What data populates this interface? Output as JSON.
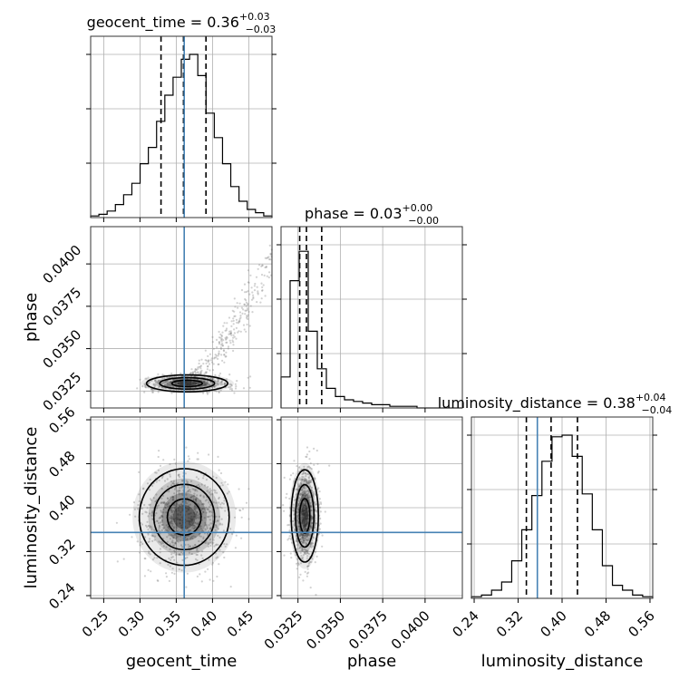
{
  "colors": {
    "truth": "#4682b4",
    "hist": "#000000",
    "quantile": "#000000",
    "scatter": "#7f7f7f"
  },
  "chart_data": {
    "type": "corner",
    "parameters": [
      {
        "name": "geocent_time",
        "label": "geocent_time",
        "title": {
          "prefix": "geocent_time = ",
          "median": "0.36",
          "plus": "+0.03",
          "minus": "−0.03"
        },
        "range": [
          0.232,
          0.482
        ],
        "ticks": [
          0.25,
          0.3,
          0.35,
          0.4,
          0.45
        ],
        "tick_labels": [
          "0.25",
          "0.30",
          "0.35",
          "0.40",
          "0.45"
        ],
        "truth": 0.361,
        "quantiles": [
          0.329,
          0.36,
          0.391
        ],
        "hist": [
          0.01,
          0.02,
          0.04,
          0.08,
          0.14,
          0.21,
          0.33,
          0.43,
          0.59,
          0.75,
          0.86,
          0.97,
          1.0,
          0.87,
          0.64,
          0.49,
          0.33,
          0.19,
          0.1,
          0.05,
          0.03,
          0.01
        ]
      },
      {
        "name": "phase",
        "label": "phase",
        "title": {
          "prefix": "phase = ",
          "median": "0.03",
          "plus": "+0.00",
          "minus": "−0.00"
        },
        "range": [
          0.0315,
          0.0422
        ],
        "ticks": [
          0.0325,
          0.035,
          0.0375,
          0.04
        ],
        "tick_labels": [
          "0.0325",
          "0.0350",
          "0.0375",
          "0.0400"
        ],
        "truth": null,
        "quantiles": [
          0.0326,
          0.033,
          0.0339
        ],
        "hist": [
          0.19,
          0.78,
          0.96,
          0.47,
          0.24,
          0.12,
          0.07,
          0.05,
          0.04,
          0.03,
          0.02,
          0.02,
          0.01,
          0.01,
          0.01,
          0.0,
          0.0,
          0.0,
          0.0,
          0.0
        ]
      },
      {
        "name": "luminosity_distance",
        "label": "luminosity_distance",
        "title": {
          "prefix": "luminosity_distance = ",
          "median": "0.38",
          "plus": "+0.04",
          "minus": "−0.04"
        },
        "range": [
          0.235,
          0.565
        ],
        "ticks": [
          0.24,
          0.32,
          0.4,
          0.48,
          0.56
        ],
        "tick_labels": [
          "0.24",
          "0.32",
          "0.40",
          "0.48",
          "0.56"
        ],
        "truth": 0.355,
        "quantiles": [
          0.335,
          0.38,
          0.428
        ],
        "hist": [
          0.01,
          0.02,
          0.05,
          0.1,
          0.23,
          0.42,
          0.63,
          0.84,
          0.99,
          1.0,
          0.87,
          0.64,
          0.42,
          0.2,
          0.08,
          0.05,
          0.02,
          0.01
        ]
      }
    ],
    "pairs": [
      {
        "x": "geocent_time",
        "y": "phase",
        "mean": [
          0.365,
          0.03295
        ],
        "sd": [
          0.028,
          0.00025
        ],
        "tail": true
      },
      {
        "x": "geocent_time",
        "y": "luminosity_distance",
        "mean": [
          0.361,
          0.383
        ],
        "sd": [
          0.031,
          0.044
        ],
        "tail": false
      },
      {
        "x": "phase",
        "y": "luminosity_distance",
        "mean": [
          0.0329,
          0.385
        ],
        "sd": [
          0.0004,
          0.042
        ],
        "tail": false
      }
    ]
  }
}
